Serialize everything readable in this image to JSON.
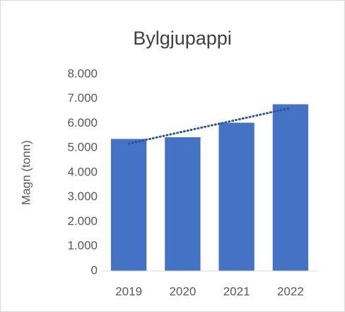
{
  "chart_data": {
    "type": "bar",
    "title": "Bylgjupappi",
    "y_label": "Magn (tonn)",
    "categories": [
      "2019",
      "2020",
      "2021",
      "2022"
    ],
    "values": [
      5370,
      5440,
      6030,
      6780
    ],
    "color": "#4472c4",
    "ylim": [
      0,
      8000
    ],
    "yticks": [
      0,
      {
        "value": 1000,
        "label": "1.000"
      },
      {
        "value": 2000,
        "label": "2.000"
      },
      {
        "value": 3000,
        "label": "3.000"
      },
      {
        "value": 4000,
        "label": "4.000"
      },
      {
        "value": 5000,
        "label": "5.000"
      },
      {
        "value": 6000,
        "label": "6.000"
      },
      {
        "value": 7000,
        "label": "7.000"
      },
      {
        "value": 8000,
        "label": "8.000"
      }
    ],
    "grid": false,
    "trendline": "linear"
  }
}
